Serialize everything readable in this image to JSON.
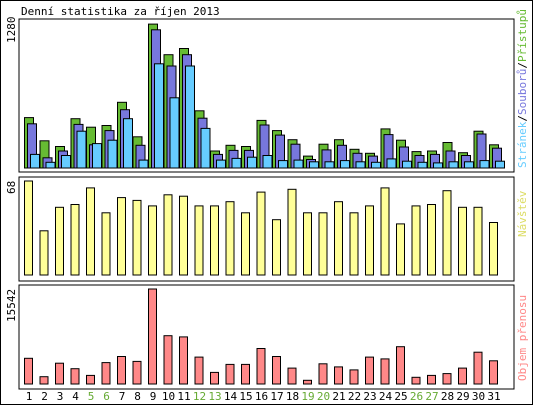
{
  "title": "Denní statistika za říjen 2013",
  "chart_data": [
    {
      "type": "bar",
      "categories": [
        "1",
        "2",
        "3",
        "4",
        "5",
        "6",
        "7",
        "8",
        "9",
        "10",
        "11",
        "12",
        "13",
        "14",
        "15",
        "16",
        "17",
        "18",
        "19",
        "20",
        "21",
        "22",
        "23",
        "24",
        "25",
        "26",
        "27",
        "28",
        "29",
        "30",
        "31"
      ],
      "weekend_days": [
        "5",
        "6",
        "12",
        "13",
        "19",
        "20",
        "26",
        "27"
      ],
      "ylabel": "1280",
      "ylim": [
        0,
        1280
      ],
      "series": [
        {
          "name": "Přístupů",
          "color": "#66bb33",
          "values": [
            445,
            240,
            190,
            435,
            360,
            375,
            580,
            275,
            1270,
            1000,
            1055,
            505,
            150,
            200,
            190,
            420,
            330,
            250,
            105,
            210,
            250,
            165,
            130,
            345,
            245,
            145,
            150,
            225,
            135,
            325,
            205
          ]
        },
        {
          "name": "Souborů",
          "color": "#7777dd",
          "values": [
            390,
            90,
            150,
            385,
            205,
            330,
            515,
            200,
            1220,
            900,
            1000,
            440,
            120,
            155,
            155,
            380,
            290,
            210,
            75,
            160,
            200,
            130,
            105,
            295,
            185,
            110,
            120,
            150,
            110,
            300,
            175
          ]
        },
        {
          "name": "Stránek",
          "color": "#66ccff",
          "values": [
            120,
            50,
            110,
            325,
            215,
            245,
            435,
            70,
            920,
            620,
            900,
            350,
            70,
            85,
            95,
            110,
            65,
            70,
            55,
            55,
            65,
            55,
            50,
            80,
            60,
            50,
            45,
            55,
            55,
            65,
            60
          ]
        }
      ]
    },
    {
      "type": "bar",
      "categories": [
        "1",
        "2",
        "3",
        "4",
        "5",
        "6",
        "7",
        "8",
        "9",
        "10",
        "11",
        "12",
        "13",
        "14",
        "15",
        "16",
        "17",
        "18",
        "19",
        "20",
        "21",
        "22",
        "23",
        "24",
        "25",
        "26",
        "27",
        "28",
        "29",
        "30",
        "31"
      ],
      "ylabel": "68",
      "ylim": [
        0,
        68
      ],
      "series": [
        {
          "name": "Návštěv",
          "color": "#ffff99",
          "values": [
            68,
            32,
            49,
            51,
            63,
            45,
            56,
            54,
            50,
            58,
            57,
            50,
            50,
            53,
            45,
            60,
            40,
            62,
            45,
            45,
            53,
            45,
            50,
            63,
            37,
            50,
            51,
            61,
            49,
            49,
            38
          ]
        }
      ]
    },
    {
      "type": "bar",
      "categories": [
        "1",
        "2",
        "3",
        "4",
        "5",
        "6",
        "7",
        "8",
        "9",
        "10",
        "11",
        "12",
        "13",
        "14",
        "15",
        "16",
        "17",
        "18",
        "19",
        "20",
        "21",
        "22",
        "23",
        "24",
        "25",
        "26",
        "27",
        "28",
        "29",
        "30",
        "31"
      ],
      "ylabel": "15542",
      "ylim": [
        0,
        15542
      ],
      "series": [
        {
          "name": "Objem přenosu",
          "color": "#ff8888",
          "values": [
            4200,
            1200,
            3400,
            2500,
            1400,
            3500,
            4500,
            3700,
            15542,
            7900,
            7700,
            4400,
            1900,
            3200,
            3200,
            5800,
            4500,
            2600,
            600,
            3300,
            2800,
            2300,
            4400,
            4100,
            6100,
            1100,
            1400,
            1700,
            2600,
            5200,
            3800
          ]
        }
      ]
    }
  ],
  "colors": {
    "axis": "#000000",
    "weekday_label": "#000000",
    "weekend_label": "#66aa33",
    "bar_outline": "#000000"
  }
}
